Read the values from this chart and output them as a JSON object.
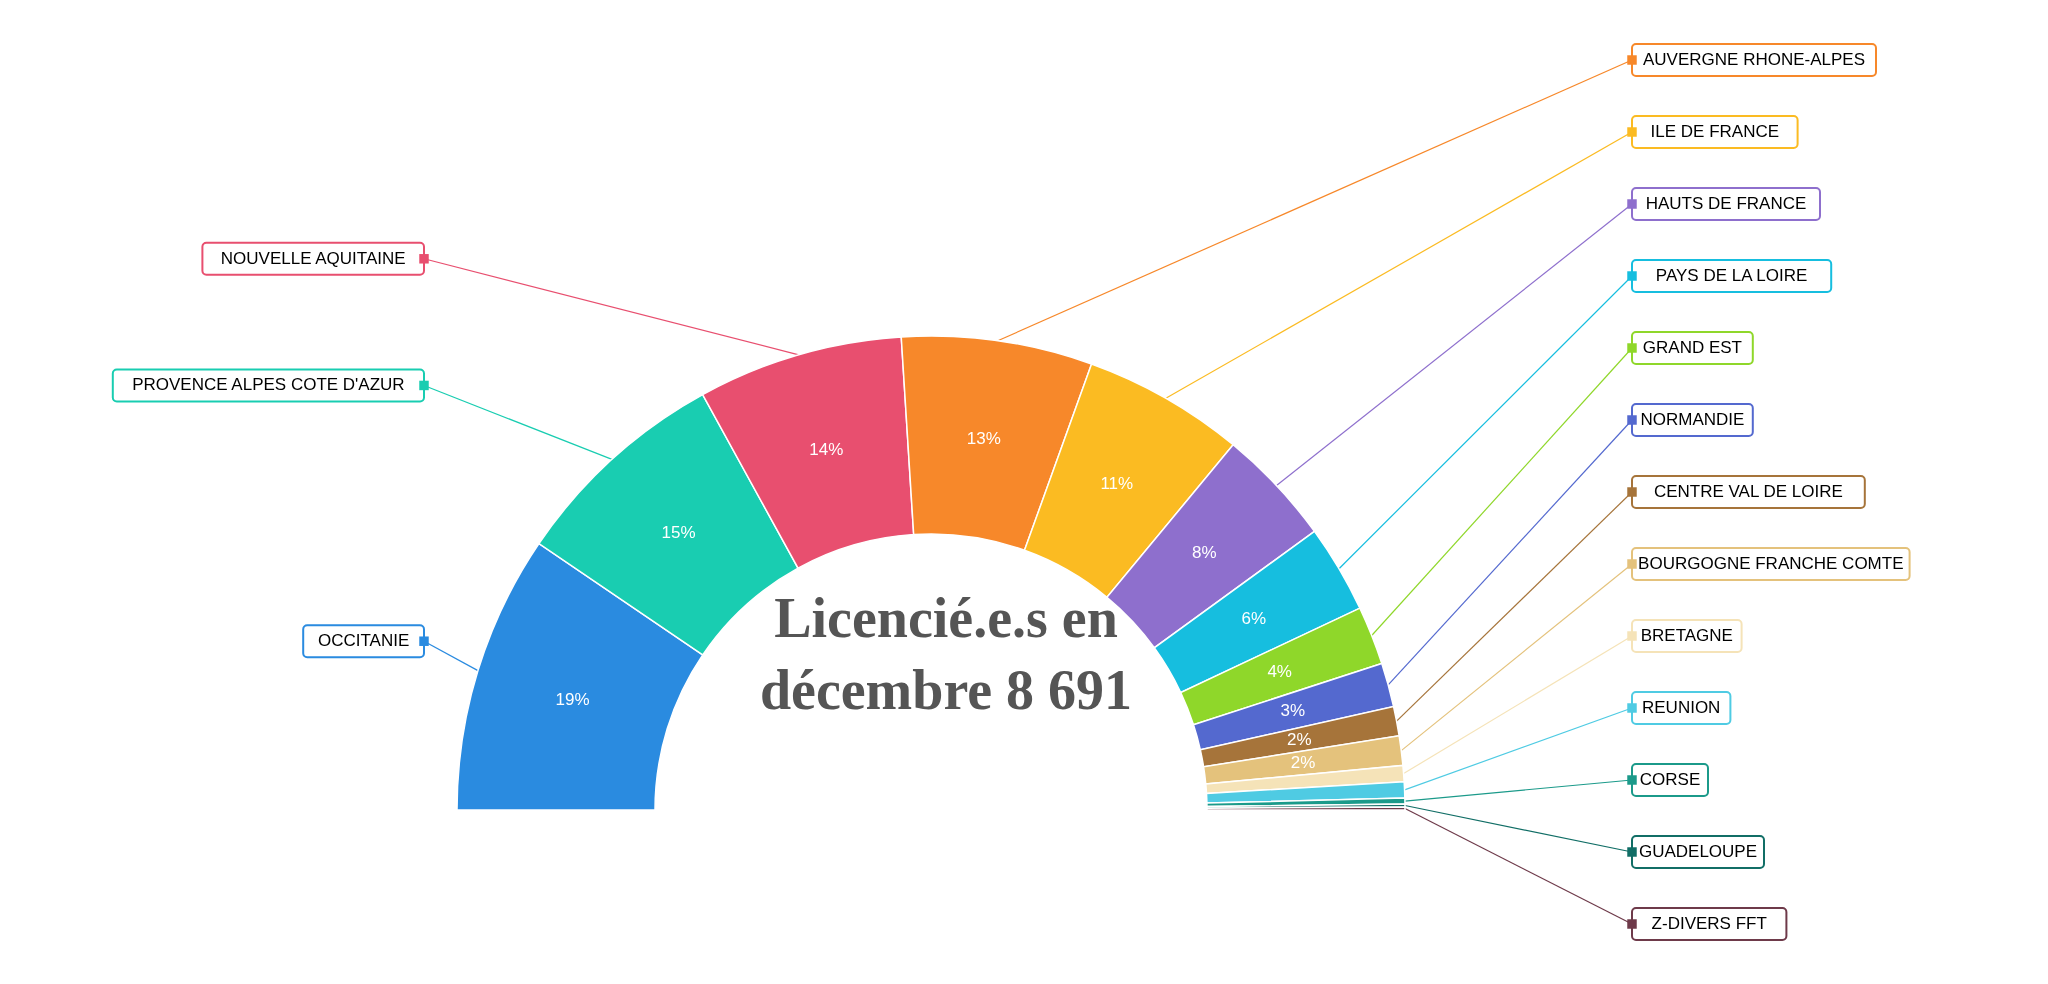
{
  "chart_data": {
    "type": "donut",
    "title": "Licencié.e.s en décembre 8 691",
    "categories": [
      "OCCITANIE",
      "PROVENCE ALPES COTE D'AZUR",
      "NOUVELLE AQUITAINE",
      "AUVERGNE RHONE-ALPES",
      "ILE DE FRANCE",
      "HAUTS DE FRANCE",
      "PAYS DE LA LOIRE",
      "GRAND EST",
      "NORMANDIE",
      "CENTRE VAL DE LOIRE",
      "BOURGOGNE FRANCHE COMTE",
      "BRETAGNE",
      "REUNION",
      "CORSE",
      "GUADELOUPE",
      "Z-DIVERS FFT"
    ],
    "values": [
      19,
      15,
      14,
      13,
      11,
      8,
      6,
      4,
      3,
      2,
      2,
      1.1,
      1.1,
      0.4,
      0.2,
      0.2
    ],
    "colors": [
      "#2a8be0",
      "#19cdb1",
      "#e84f6f",
      "#f7882a",
      "#fbbb22",
      "#8e6fcd",
      "#16bedf",
      "#8fd72a",
      "#5469cf",
      "#a6743a",
      "#e4c27c",
      "#f5e3b8",
      "#4fcbe3",
      "#1b9a8a",
      "#116e66",
      "#6e3a4a"
    ],
    "legend": "right",
    "value_labels": [
      "19%",
      "15%",
      "14%",
      "13%",
      "11%",
      "8%",
      "6%",
      "4%",
      "3%",
      "2%",
      "2%",
      null,
      null,
      null,
      null,
      null
    ]
  }
}
